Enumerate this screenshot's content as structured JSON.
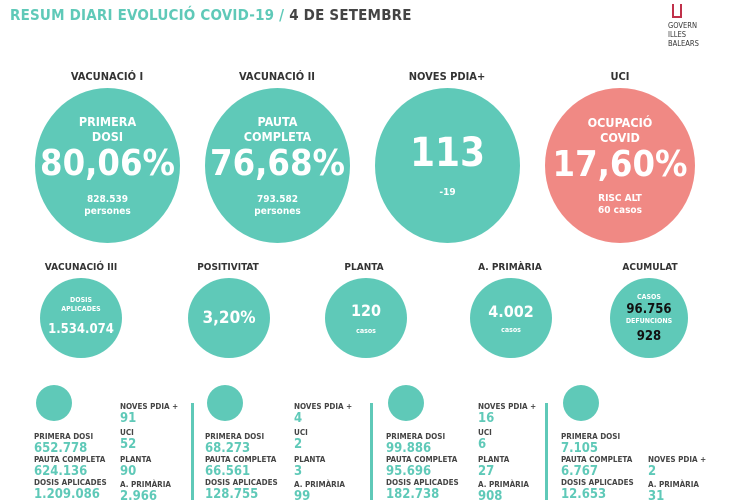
{
  "header": {
    "title": "RESUM DIARI EVOLUCIÓ COVID-19 / ",
    "date": "4 DE SETEMBRE",
    "logo_text": [
      "GOVERN",
      "ILLES",
      "BALEARS"
    ]
  },
  "colors": {
    "teal": "#5fc9b8",
    "red": "#f08984"
  },
  "top": [
    {
      "heading": "VACUNACIÓ I",
      "label": "PRIMERA DOSI",
      "value": "80,06%",
      "sub1": "828.539",
      "sub2": "persones"
    },
    {
      "heading": "VACUNACIÓ II",
      "label": "PAUTA COMPLETA",
      "value": "76,68%",
      "sub1": "793.582",
      "sub2": "persones"
    },
    {
      "heading": "NOVES PDIA+",
      "value": "113",
      "sub1": "-19"
    },
    {
      "heading": "UCI",
      "label": "OCUPACIÓ COVID",
      "value": "17,60%",
      "sub1": "RISC ALT",
      "sub2": "60 casos"
    }
  ],
  "middle": [
    {
      "heading": "VACUNACIÓ III",
      "label": "DOSIS APLICADES",
      "value": "1.534.074"
    },
    {
      "heading": "POSITIVITAT",
      "value": "3,20%"
    },
    {
      "heading": "PLANTA",
      "value": "120",
      "sub": "casos"
    },
    {
      "heading": "A. PRIMÀRIA",
      "value": "4.002",
      "sub": "casos"
    },
    {
      "heading": "ACUMULAT",
      "l1": "CASOS",
      "v1": "96.756",
      "l2": "DEFUNCIONS",
      "v2": "928"
    }
  ],
  "islands": [
    {
      "icon": "mallorca-icon",
      "primera_label": "PRIMERA DOSI",
      "primera": "652.778",
      "pauta_label": "PAUTA COMPLETA",
      "pauta": "624.136",
      "dosis_label": "DOSIS APLICADES",
      "dosis": "1.209.086",
      "pdia_label": "NOVES PDIA +",
      "pdia": "91",
      "uci_label": "UCI",
      "uci": "52",
      "planta_label": "PLANTA",
      "planta": "90",
      "ap_label": "A. PRIMÀRIA",
      "ap": "2.966"
    },
    {
      "icon": "menorca-icon",
      "primera_label": "PRIMERA DOSI",
      "primera": "68.273",
      "pauta_label": "PAUTA COMPLETA",
      "pauta": "66.561",
      "dosis_label": "DOSIS APLICADES",
      "dosis": "128.755",
      "pdia_label": "NOVES PDIA +",
      "pdia": "4",
      "uci_label": "UCI",
      "uci": "2",
      "planta_label": "PLANTA",
      "planta": "3",
      "ap_label": "A. PRIMÀRIA",
      "ap": "99"
    },
    {
      "icon": "eivissa-icon",
      "primera_label": "PRIMERA DOSI",
      "primera": "99.886",
      "pauta_label": "PAUTA COMPLETA",
      "pauta": "95.696",
      "dosis_label": "DOSIS APLICADES",
      "dosis": "182.738",
      "pdia_label": "NOVES PDIA +",
      "pdia": "16",
      "uci_label": "UCI",
      "uci": "6",
      "planta_label": "PLANTA",
      "planta": "27",
      "ap_label": "A. PRIMÀRIA",
      "ap": "908"
    },
    {
      "icon": "formentera-icon",
      "primera_label": "PRIMERA DOSI",
      "primera": "7.105",
      "pauta_label": "PAUTA COMPLETA",
      "pauta": "6.767",
      "dosis_label": "DOSIS APLICADES",
      "dosis": "12.653",
      "pdia_label": "NOVES PDIA +",
      "pdia": "2",
      "ap_label": "A. PRIMÀRIA",
      "ap": "31"
    }
  ]
}
